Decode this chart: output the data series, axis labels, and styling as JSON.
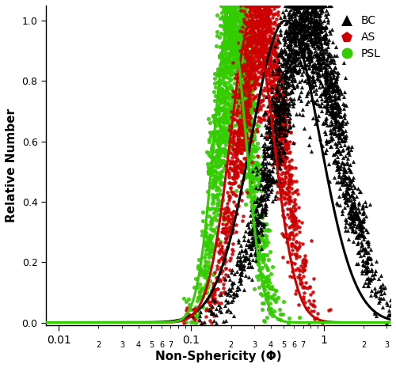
{
  "title": "",
  "xlabel": "Non-Sphericity (Φ)",
  "ylabel": "Relative Number",
  "xlim_log": [
    0.008,
    3.2
  ],
  "ylim": [
    -0.01,
    1.05
  ],
  "bc_color": "#000000",
  "as_color": "#cc0000",
  "psl_color": "#33cc00",
  "bc_marker": "^",
  "as_marker": "p",
  "psl_marker": "o",
  "bc_fit_mu": -0.3,
  "bc_fit_sigma": 0.6,
  "as_fit_mu": -1.1,
  "as_fit_sigma": 0.38,
  "psl_fit_mu": -1.55,
  "psl_fit_sigma": 0.28,
  "legend_labels": [
    "BC",
    "AS",
    "PSL"
  ],
  "legend_colors": [
    "#000000",
    "#cc0000",
    "#33cc00"
  ],
  "legend_markers": [
    "^",
    "p",
    "o"
  ],
  "figsize": [
    5.0,
    4.84
  ],
  "dpi": 100,
  "bc_n": 10000,
  "as_n": 10000,
  "psl_n": 10000
}
